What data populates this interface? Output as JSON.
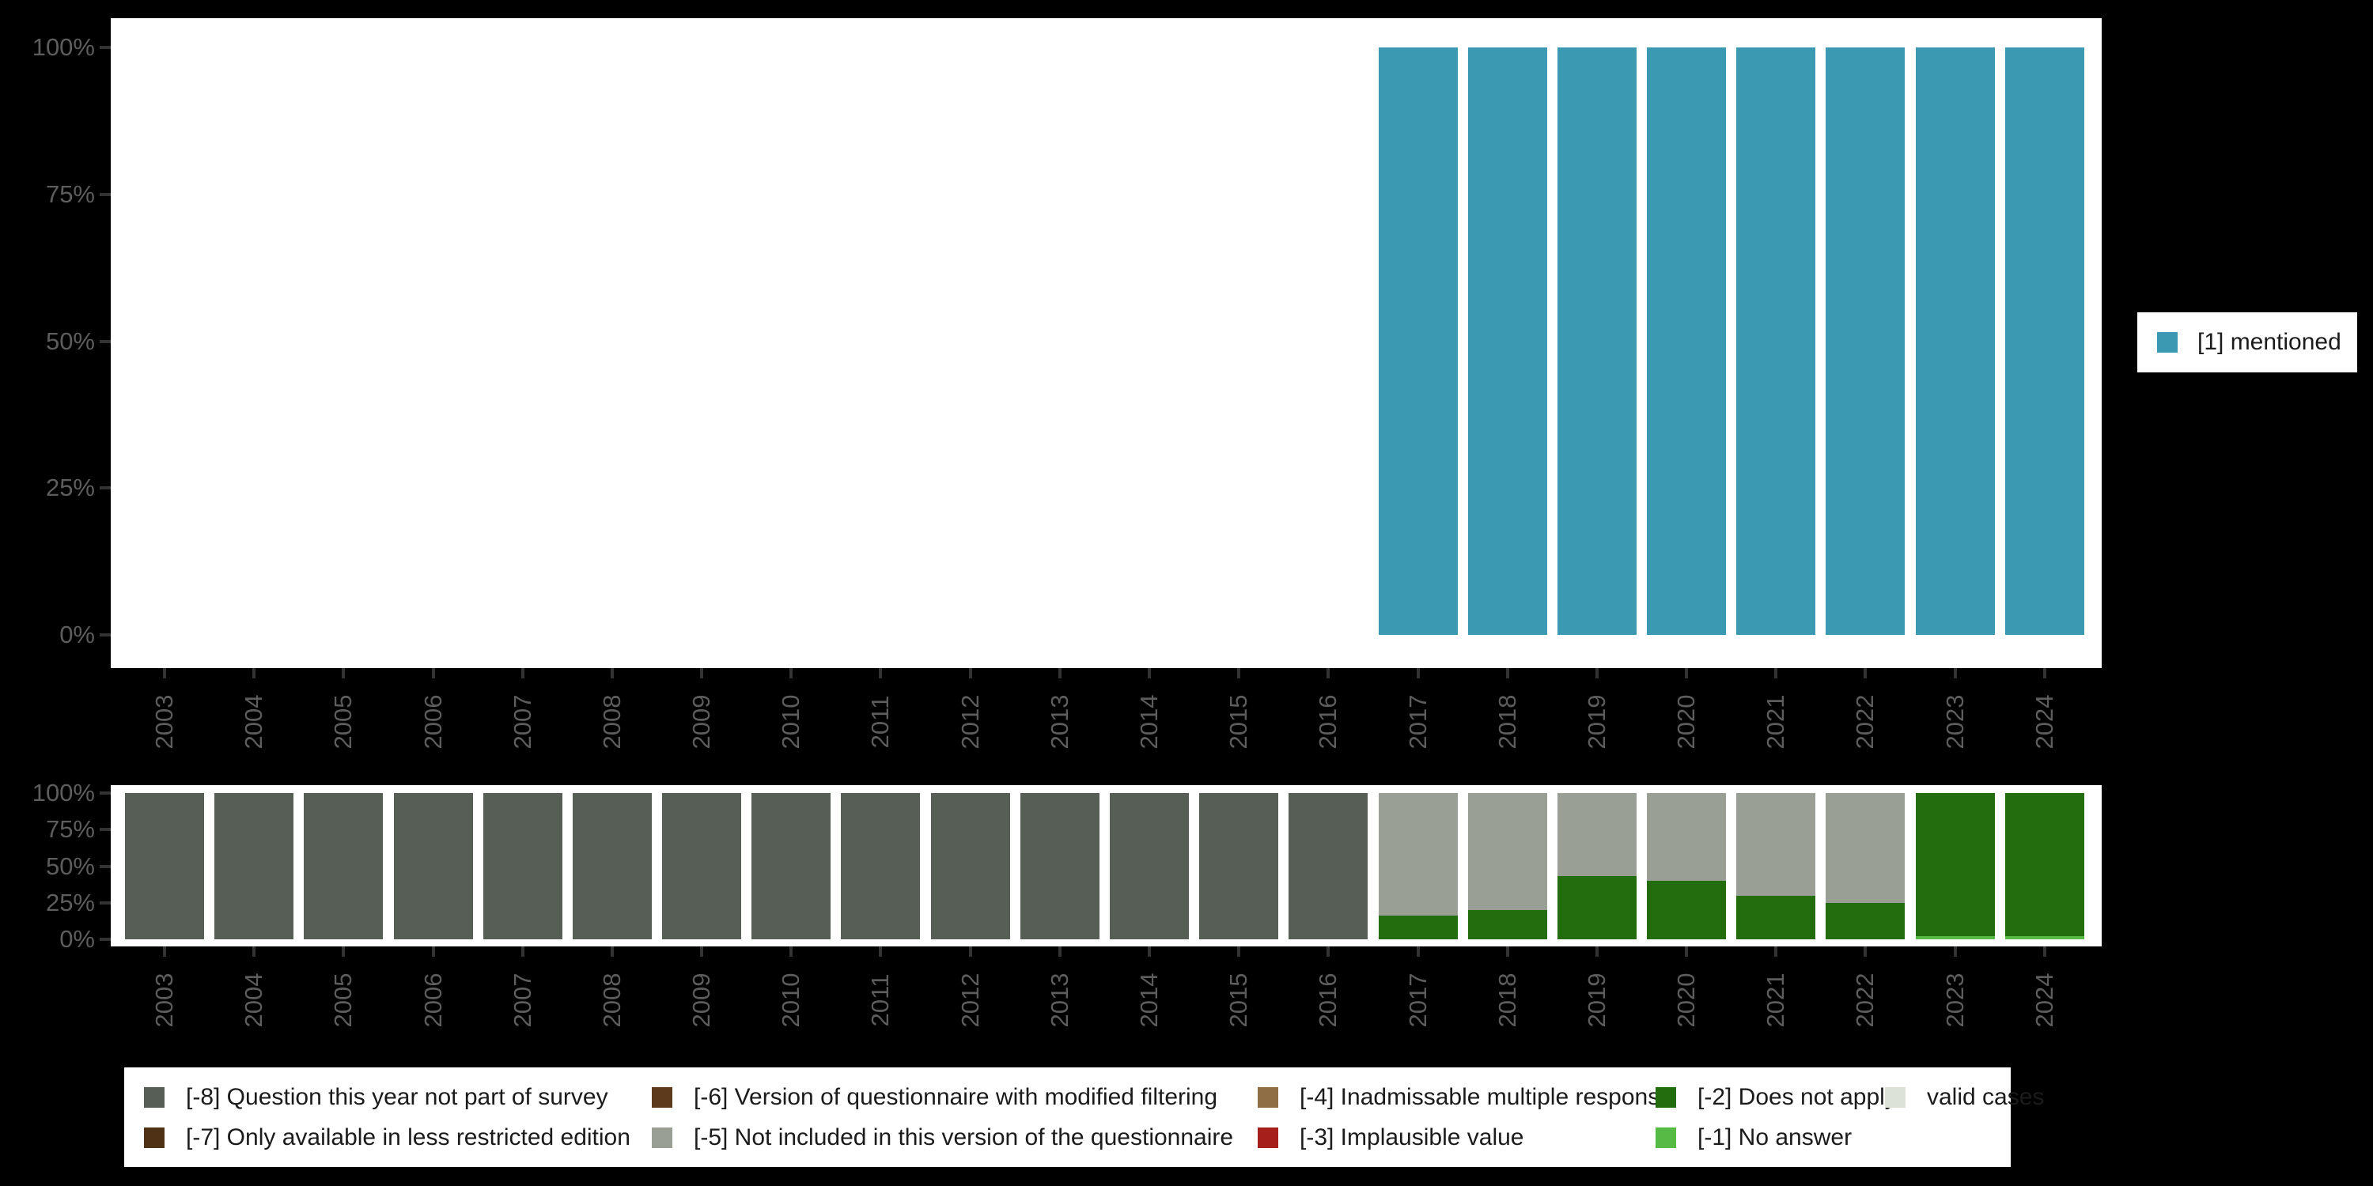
{
  "chart_data": [
    {
      "type": "bar",
      "title": "",
      "categories": [
        "2003",
        "2004",
        "2005",
        "2006",
        "2007",
        "2008",
        "2009",
        "2010",
        "2011",
        "2012",
        "2013",
        "2014",
        "2015",
        "2016",
        "2017",
        "2018",
        "2019",
        "2020",
        "2021",
        "2022",
        "2023",
        "2024"
      ],
      "y_tick_labels": [
        "100%",
        "75%",
        "50%",
        "25%",
        "0%"
      ],
      "ylim": [
        0,
        100
      ],
      "ylabel": "",
      "xlabel": "",
      "grid": false,
      "legend_position": "right",
      "series": [
        {
          "name": "[1] mentioned",
          "color": "#3B9AB2",
          "values": [
            null,
            null,
            null,
            null,
            null,
            null,
            null,
            null,
            null,
            null,
            null,
            null,
            null,
            null,
            100,
            100,
            100,
            100,
            100,
            100,
            100,
            100
          ]
        }
      ]
    },
    {
      "type": "stacked-bar",
      "title": "",
      "categories": [
        "2003",
        "2004",
        "2005",
        "2006",
        "2007",
        "2008",
        "2009",
        "2010",
        "2011",
        "2012",
        "2013",
        "2014",
        "2015",
        "2016",
        "2017",
        "2018",
        "2019",
        "2020",
        "2021",
        "2022",
        "2023",
        "2024"
      ],
      "y_tick_labels": [
        "100%",
        "75%",
        "50%",
        "25%",
        "0%"
      ],
      "ylim": [
        0,
        100
      ],
      "ylabel": "",
      "xlabel": "",
      "grid": false,
      "legend_position": "bottom",
      "series": [
        {
          "name": "[-1] No answer",
          "color": "#56BB44",
          "values": [
            0,
            0,
            0,
            0,
            0,
            0,
            0,
            0,
            0,
            0,
            0,
            0,
            0,
            0,
            0,
            0,
            0,
            0,
            0,
            0,
            2,
            2
          ]
        },
        {
          "name": "[-2] Does not apply",
          "color": "#246D0E",
          "values": [
            0,
            0,
            0,
            0,
            0,
            0,
            0,
            0,
            0,
            0,
            0,
            0,
            0,
            0,
            16,
            20,
            43,
            40,
            30,
            25,
            98,
            98
          ]
        },
        {
          "name": "[-5] Not included in this version of the questionnaire",
          "color": "#9A9F96",
          "values": [
            0,
            0,
            0,
            0,
            0,
            0,
            0,
            0,
            0,
            0,
            0,
            0,
            0,
            0,
            84,
            80,
            57,
            60,
            70,
            75,
            0,
            0
          ]
        },
        {
          "name": "[-8] Question this year not part of survey",
          "color": "#565E56",
          "values": [
            100,
            100,
            100,
            100,
            100,
            100,
            100,
            100,
            100,
            100,
            100,
            100,
            100,
            100,
            0,
            0,
            0,
            0,
            0,
            0,
            0,
            0
          ]
        }
      ]
    }
  ],
  "top_legend": {
    "label": "[1] mentioned",
    "swatch_color": "#3B9AB2"
  },
  "bottom_legend": {
    "items": [
      {
        "label": "[-8] Question this year not part of survey",
        "color": "#565E56",
        "col": 0,
        "row": 0
      },
      {
        "label": "[-7] Only available in less restricted edition",
        "color": "#4F3115",
        "col": 0,
        "row": 1
      },
      {
        "label": "[-6] Version of questionnaire with modified filtering",
        "color": "#5C3A1B",
        "col": 1,
        "row": 0
      },
      {
        "label": "[-5] Not included in this version of the questionnaire",
        "color": "#9A9F96",
        "col": 1,
        "row": 1
      },
      {
        "label": "[-4] Inadmissable multiple response",
        "color": "#8F6D45",
        "col": 2,
        "row": 0
      },
      {
        "label": "[-3] Implausible value",
        "color": "#A51F1B",
        "col": 2,
        "row": 1
      },
      {
        "label": "[-2] Does not apply",
        "color": "#246D0E",
        "col": 3,
        "row": 0
      },
      {
        "label": "[-1] No answer",
        "color": "#56BB44",
        "col": 3,
        "row": 1
      },
      {
        "label": "valid cases",
        "color": "#DDE2D8",
        "col": 4,
        "row": 0
      }
    ]
  }
}
